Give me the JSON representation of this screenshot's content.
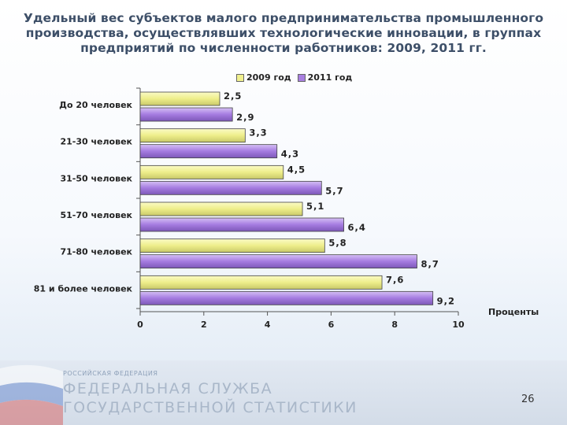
{
  "title": "Удельный вес субъектов малого предпринимательства промышленного производства, осуществлявших технологические инновации, в группах предприятий по численности работников: 2009, 2011 гг.",
  "legend": {
    "s2009": "2009 год",
    "s2011": "2011 год"
  },
  "colors": {
    "s2009": "#f0f08e",
    "s2011": "#a87fe0"
  },
  "chart_data": {
    "type": "bar",
    "orientation": "horizontal",
    "categories": [
      "До 20 человек",
      "21-30 человек",
      "31-50 человек",
      "51-70 человек",
      "71-80 человек",
      "81 и более человек"
    ],
    "series": [
      {
        "name": "2009 год",
        "values": [
          2.5,
          3.3,
          4.5,
          5.1,
          5.8,
          7.6
        ]
      },
      {
        "name": "2011 год",
        "values": [
          2.9,
          4.3,
          5.7,
          6.4,
          8.7,
          9.2
        ]
      }
    ],
    "value_labels": [
      [
        "2,5",
        "3,3",
        "4,5",
        "5,1",
        "5,8",
        "7,6"
      ],
      [
        "2,9",
        "4,3",
        "5,7",
        "6,4",
        "8,7",
        "9,2"
      ]
    ],
    "xlabel": "Проценты",
    "xlim": [
      0,
      10
    ],
    "xticks": [
      "0",
      "2",
      "4",
      "6",
      "8",
      "10"
    ],
    "legend_position": "top"
  },
  "footer": {
    "small": "РОССИЙСКАЯ ФЕДЕРАЦИЯ",
    "line1": "ФЕДЕРАЛЬНАЯ СЛУЖБА",
    "line2": "ГОСУДАРСТВЕННОЙ СТАТИСТИКИ",
    "page": "26"
  }
}
